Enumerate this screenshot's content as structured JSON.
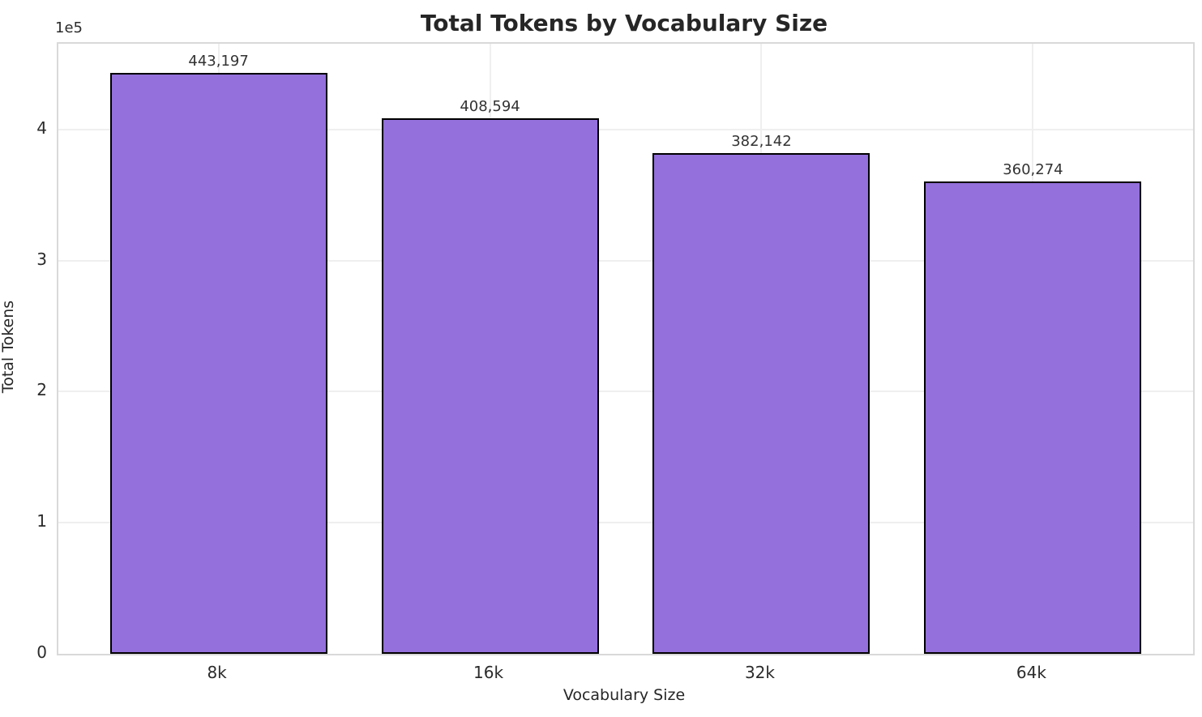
{
  "chart_data": {
    "type": "bar",
    "title": "Total Tokens by Vocabulary Size",
    "xlabel": "Vocabulary Size",
    "ylabel": "Total Tokens",
    "y_offset_label": "1e5",
    "categories": [
      "8k",
      "16k",
      "32k",
      "64k"
    ],
    "values": [
      443197,
      408594,
      382142,
      360274
    ],
    "value_labels": [
      "443,197",
      "408,594",
      "382,142",
      "360,274"
    ],
    "y_ticks": [
      0,
      100000,
      200000,
      300000,
      400000
    ],
    "y_tick_labels": [
      "0",
      "1",
      "2",
      "3",
      "4"
    ],
    "ylim": [
      0,
      465357
    ],
    "xlim": [
      -0.59,
      3.59
    ],
    "bar_width_units": 0.8,
    "grid": "both",
    "legend_position": "none",
    "bar_color": "#9370DB",
    "bar_edge_color": "#000000",
    "grid_color": "#efefef",
    "spine_color": "#d9d9d9",
    "text_color": "#262626"
  }
}
